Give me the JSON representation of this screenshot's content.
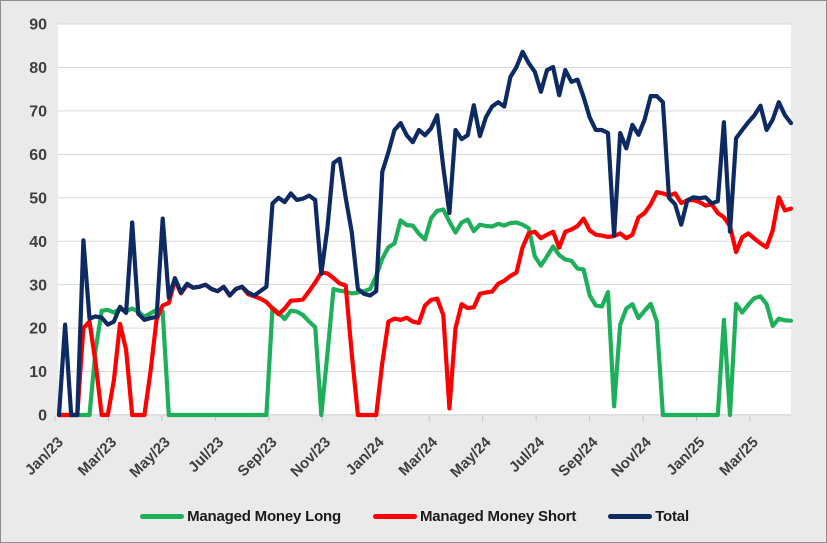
{
  "colors": {
    "chart_bg": "#EAEAEA",
    "plot_bg": "#FFFFFF",
    "gridline": "#D9D9D9",
    "axis_line": "#C0C0C0",
    "axis_text": "#3F3F3F",
    "legend_text": "#1A1A1A",
    "frame_border": "#8E8E8E",
    "green": "#1EAF5A",
    "red": "#FF0000",
    "navy": "#0E2A63"
  },
  "chart_data": {
    "type": "line",
    "title": "",
    "xlabel": "",
    "ylabel": "",
    "ylim": [
      0,
      90
    ],
    "y_ticks": [
      0,
      10,
      20,
      30,
      40,
      50,
      60,
      70,
      80,
      90
    ],
    "grid": true,
    "legend_position": "bottom",
    "x_unit": "weekly, Jan 2023 through Apr 2025",
    "x_labels": [
      "Jan/23",
      "Mar/23",
      "May/23",
      "Jul/23",
      "Sep/23",
      "Nov/23",
      "Jan/24",
      "Mar/24",
      "May/24",
      "Jul/24",
      "Sep/24",
      "Nov/24",
      "Jan/25",
      "Mar/25"
    ],
    "series": [
      {
        "name": "Managed Money Long",
        "color": "#1EAF5A",
        "values": [
          0,
          0,
          0,
          0,
          0,
          0,
          15,
          24,
          24.2,
          23.6,
          24.4,
          23.9,
          24.5,
          23.8,
          22.6,
          23.4,
          24.2,
          23.8,
          0,
          0,
          0,
          0,
          0,
          0,
          0,
          0,
          0,
          0,
          0,
          0,
          0,
          0,
          0,
          0,
          0,
          24.7,
          23.5,
          22.1,
          24,
          23.8,
          23,
          21.5,
          20.2,
          0,
          14,
          29,
          28.6,
          28.4,
          28,
          28.2,
          28.5,
          29,
          32,
          36,
          38.6,
          39.5,
          44.8,
          43.7,
          43.6,
          41.7,
          40.4,
          45.3,
          47,
          47.3,
          44.5,
          42,
          44.3,
          45,
          42.3,
          43.8,
          43.5,
          43.4,
          44,
          43.6,
          44.2,
          44.3,
          43.8,
          43,
          36.5,
          34.4,
          36.5,
          38.8,
          36.8,
          35.8,
          35.5,
          33.7,
          33.5,
          27.5,
          25.2,
          25,
          28.3,
          2,
          20.8,
          24.5,
          25.5,
          22.3,
          24,
          25.6,
          21.5,
          0,
          0,
          0,
          0,
          0,
          0,
          0,
          0,
          0,
          0,
          21.9,
          0,
          25.6,
          23.6,
          25.4,
          26.9,
          27.3,
          25.5,
          20.5,
          22.2,
          21.8,
          21.7
        ]
      },
      {
        "name": "Managed Money Short",
        "color": "#FF0000",
        "values": [
          0,
          0,
          0,
          0,
          20,
          21.5,
          12,
          0,
          0,
          8,
          21,
          15,
          0,
          0,
          0,
          10,
          22,
          25.2,
          25.8,
          31,
          28,
          30,
          29.3,
          29.5,
          30,
          29,
          28.5,
          29.5,
          27.5,
          29,
          29.5,
          27.8,
          27.3,
          26.8,
          26,
          24.5,
          23.2,
          24.5,
          26.3,
          26.4,
          26.6,
          28.5,
          30.5,
          32.8,
          32.6,
          31.5,
          30.3,
          29.8,
          14,
          0,
          0,
          0,
          0,
          12,
          21.5,
          22.2,
          21.9,
          22.4,
          21.5,
          21.2,
          25.2,
          26.5,
          26.8,
          23,
          1.5,
          20,
          25.5,
          24.6,
          24.8,
          27.9,
          28.2,
          28.4,
          30.2,
          30.9,
          32,
          32.8,
          38.6,
          41.8,
          42.2,
          40.7,
          41.5,
          42.2,
          38.5,
          42.2,
          42.7,
          43.5,
          45.2,
          42.5,
          41.5,
          41.3,
          41,
          41.2,
          41.8,
          40.7,
          41.5,
          45.5,
          46.5,
          48.5,
          51.3,
          51,
          50.5,
          51,
          48.8,
          49.4,
          49.5,
          49,
          48.2,
          48.5,
          46.5,
          45.5,
          43.5,
          37.5,
          40.9,
          41.8,
          40.6,
          39.5,
          38.6,
          42.5,
          50.1,
          47.1,
          47.5
        ]
      },
      {
        "name": "Total",
        "color": "#0E2A63",
        "values": [
          0,
          20.8,
          0,
          0,
          40.2,
          22.2,
          22.7,
          22.4,
          20.8,
          21.5,
          24.9,
          23.5,
          44.3,
          23.3,
          21.9,
          22.3,
          22.6,
          45.2,
          27,
          31.5,
          28.2,
          30.2,
          29.3,
          29.5,
          30,
          29,
          28.5,
          29.5,
          27.5,
          29,
          29.5,
          28.2,
          27.5,
          28.5,
          29.5,
          48.7,
          50,
          49,
          51,
          49.5,
          49.8,
          50.5,
          49.5,
          32.5,
          43,
          58,
          59,
          50,
          42,
          29,
          27.9,
          27.5,
          28.5,
          56,
          60.5,
          65.6,
          67.2,
          64.4,
          62.8,
          65.6,
          64.4,
          66,
          69,
          57,
          46.5,
          65.6,
          63.5,
          64.4,
          71.3,
          64.2,
          68.6,
          71,
          72,
          71,
          77.8,
          80.1,
          83.6,
          81,
          79,
          74.4,
          79.4,
          80.1,
          73.6,
          79.4,
          76.7,
          77.2,
          73.2,
          68.5,
          65.6,
          65.6,
          64.9,
          41.3,
          64.9,
          61.4,
          66.8,
          64.5,
          68,
          73.4,
          73.4,
          72,
          50,
          48.5,
          43.8,
          49.4,
          50.1,
          49.9,
          50.1,
          48.7,
          49.2,
          67.4,
          42.2,
          63.7,
          65.6,
          67.4,
          69,
          71.2,
          65.6,
          68,
          72,
          69,
          67.2
        ]
      }
    ]
  }
}
